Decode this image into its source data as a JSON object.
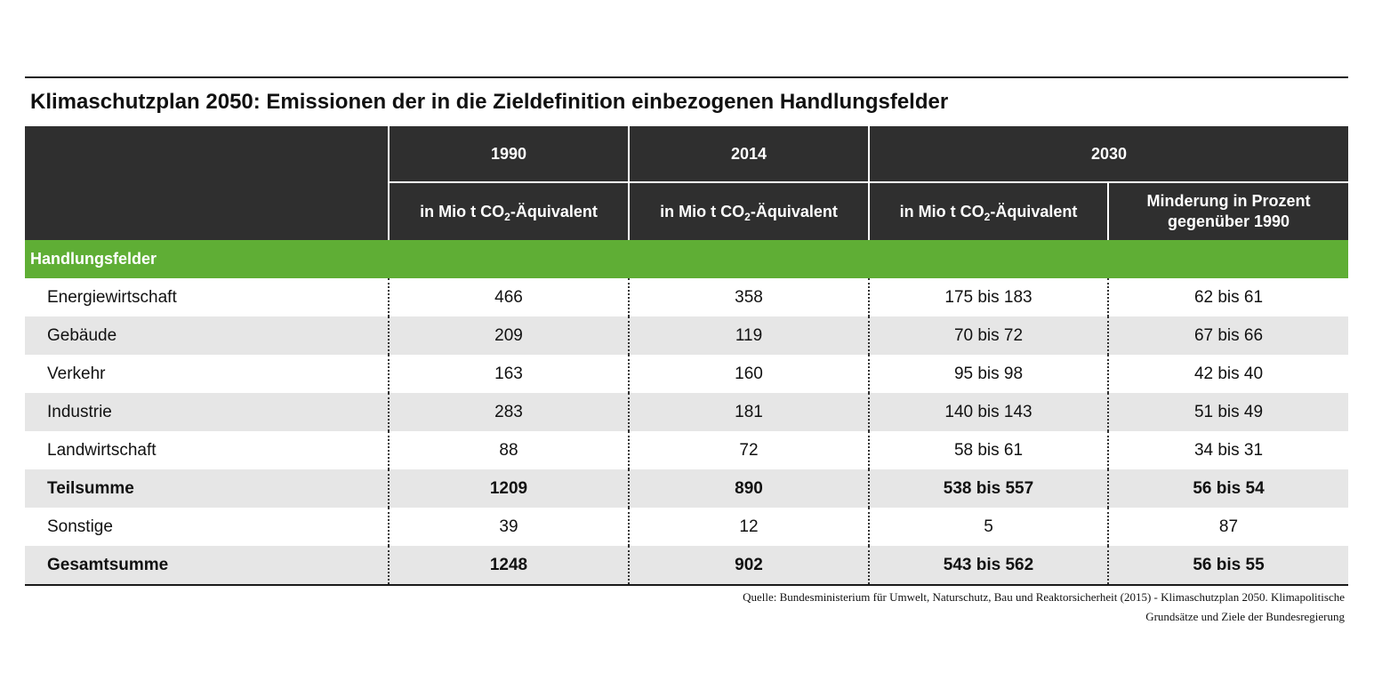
{
  "title": "Klimaschutzplan 2050: Emissionen der in die Zieldefinition einbezogenen Handlungsfelder",
  "header": {
    "years": [
      "1990",
      "2014",
      "2030"
    ],
    "unit_prefix": "in Mio t CO",
    "unit_sub": "2",
    "unit_suffix": "-Äquivalent",
    "reduction_line1": "Minderung in Prozent",
    "reduction_line2": "gegenüber 1990"
  },
  "group_label": "Handlungsfelder",
  "rows": [
    {
      "label": "Energiewirtschaft",
      "v1990": "466",
      "v2014": "358",
      "v2030": "175 bis 183",
      "reduction": "62 bis 61"
    },
    {
      "label": "Gebäude",
      "v1990": "209",
      "v2014": "119",
      "v2030": "70 bis 72",
      "reduction": "67 bis 66"
    },
    {
      "label": "Verkehr",
      "v1990": "163",
      "v2014": "160",
      "v2030": "95 bis 98",
      "reduction": "42 bis 40"
    },
    {
      "label": "Industrie",
      "v1990": "283",
      "v2014": "181",
      "v2030": "140 bis 143",
      "reduction": "51 bis 49"
    },
    {
      "label": "Landwirtschaft",
      "v1990": "88",
      "v2014": "72",
      "v2030": "58 bis 61",
      "reduction": "34 bis 31"
    },
    {
      "label": "Teilsumme",
      "v1990": "1209",
      "v2014": "890",
      "v2030": "538 bis 557",
      "reduction": "56 bis 54"
    },
    {
      "label": "Sonstige",
      "v1990": "39",
      "v2014": "12",
      "v2030": "5",
      "reduction": "87"
    },
    {
      "label": "Gesamtsumme",
      "v1990": "1248",
      "v2014": "902",
      "v2030": "543 bis 562",
      "reduction": "56 bis 55"
    }
  ],
  "source_line1": "Quelle: Bundesministerium für Umwelt, Naturschutz, Bau und Reaktorsicherheit (2015) - Klimaschutzplan 2050. Klimapolitische",
  "source_line2": "Grundsätze und Ziele der Bundesregierung",
  "colors": {
    "header_bg": "#2f2f2f",
    "group_bg": "#5fae35",
    "alt_row_bg": "#e6e6e6"
  }
}
